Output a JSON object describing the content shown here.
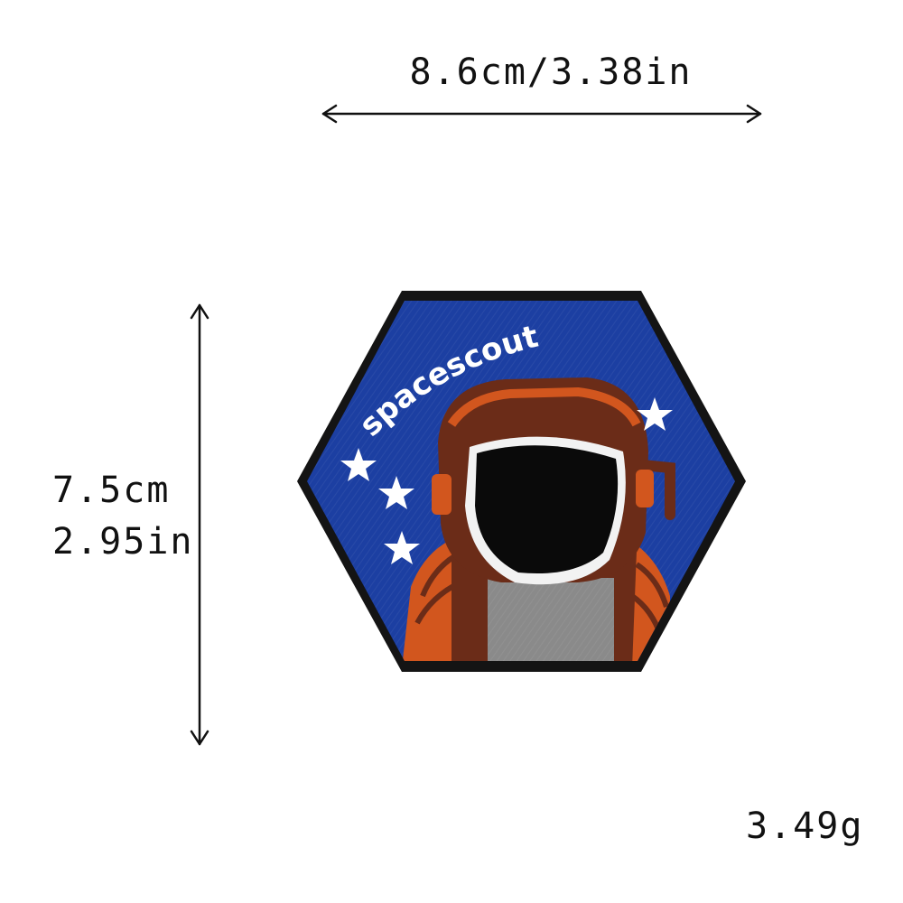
{
  "dimensions": {
    "width_label": "8.6cm/3.38in",
    "height_label_cm": "7.5cm",
    "height_label_in": "2.95in"
  },
  "weight_label": "3.49g",
  "patch": {
    "shape": "hexagon",
    "text": "spacescout",
    "subject": "astronaut-helmet",
    "colors": {
      "border": "#111111",
      "background": "#1c3fa2",
      "helmet": "#6b2c18",
      "suit": "#d2561e",
      "visor": "#0a0a0a",
      "chest": "#8a8a8a",
      "stars": "#ffffff"
    }
  },
  "icons": {
    "stars": "star-icon",
    "arrows": [
      "double-arrow-horizontal",
      "double-arrow-vertical"
    ]
  }
}
